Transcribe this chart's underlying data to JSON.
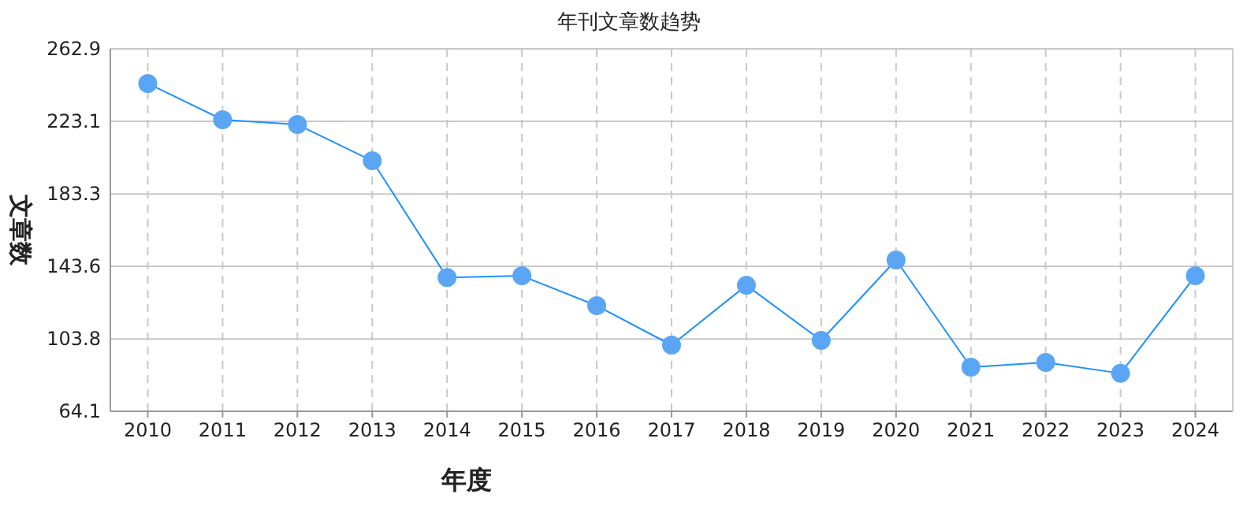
{
  "chart_data": {
    "type": "line",
    "title": "年刊文章数趋势",
    "xlabel": "年度",
    "ylabel": "文章数",
    "categories": [
      "2010",
      "2011",
      "2012",
      "2013",
      "2014",
      "2015",
      "2016",
      "2017",
      "2018",
      "2019",
      "2020",
      "2021",
      "2022",
      "2023",
      "2024"
    ],
    "series": [
      {
        "color": "#1e90ff",
        "values": [
          243.9,
          224.0,
          221.4,
          201.5,
          137.5,
          138.4,
          122.0,
          100.4,
          133.2,
          103.0,
          147.1,
          88.3,
          90.9,
          84.9,
          138.4
        ]
      }
    ],
    "ylim": [
      64.1,
      262.9
    ],
    "yticks": [
      64.1,
      103.8,
      143.6,
      183.3,
      223.1,
      262.9
    ],
    "grid": true,
    "marker": "circle"
  }
}
